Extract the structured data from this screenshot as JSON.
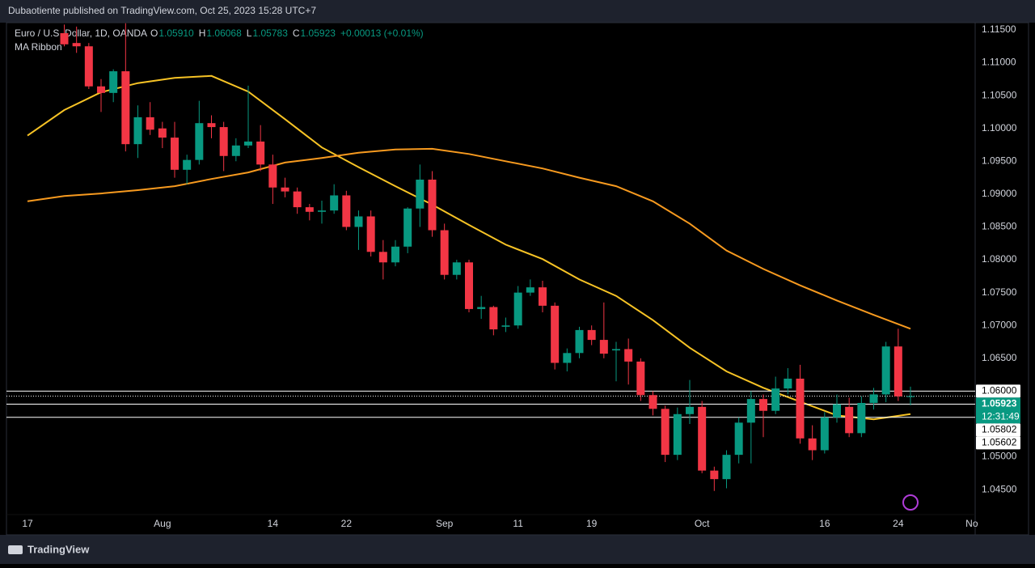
{
  "header": {
    "publisher": "Dubaotiente published on TradingView.com, Oct 25, 2023 15:28 UTC+7"
  },
  "footer": {
    "brand": "TradingView"
  },
  "chart_data": {
    "type": "candlestick",
    "title": "Euro / U.S. Dollar, 1D, OANDA",
    "legend": {
      "o_label": "O",
      "o": "1.05910",
      "h_label": "H",
      "h": "1.06068",
      "l_label": "L",
      "l": "1.05783",
      "c_label": "C",
      "c": "1.05923",
      "change": "+0.00013 (+0.01%)"
    },
    "indicator": "MA Ribbon",
    "up_color": "#089981",
    "down_color": "#f23645",
    "ylim": [
      1.0412,
      1.1161
    ],
    "yticks": [
      {
        "value": 1.115,
        "label": "1.11500"
      },
      {
        "value": 1.11,
        "label": "1.11000"
      },
      {
        "value": 1.105,
        "label": "1.10500"
      },
      {
        "value": 1.1,
        "label": "1.10000"
      },
      {
        "value": 1.095,
        "label": "1.09500"
      },
      {
        "value": 1.09,
        "label": "1.09000"
      },
      {
        "value": 1.085,
        "label": "1.08500"
      },
      {
        "value": 1.08,
        "label": "1.08000"
      },
      {
        "value": 1.075,
        "label": "1.07500"
      },
      {
        "value": 1.07,
        "label": "1.07000"
      },
      {
        "value": 1.065,
        "label": "1.06500"
      },
      {
        "value": 1.06,
        "label": "1.06000"
      },
      {
        "value": 1.055,
        "label": "1.05500"
      },
      {
        "value": 1.05,
        "label": "1.05000"
      },
      {
        "value": 1.045,
        "label": "1.04500"
      }
    ],
    "grid": false,
    "categories": [
      "17",
      null,
      null,
      null,
      null,
      null,
      null,
      null,
      null,
      null,
      null,
      "Aug",
      null,
      null,
      null,
      null,
      null,
      null,
      null,
      null,
      "14",
      null,
      null,
      null,
      null,
      null,
      "22",
      null,
      null,
      null,
      null,
      null,
      null,
      null,
      "Sep",
      null,
      null,
      null,
      null,
      null,
      "11",
      null,
      null,
      null,
      null,
      null,
      "19",
      null,
      null,
      null,
      null,
      null,
      null,
      null,
      null,
      "Oct",
      null,
      null,
      null,
      null,
      null,
      null,
      null,
      null,
      null,
      "16",
      null,
      null,
      null,
      null,
      null,
      "24",
      null,
      null,
      null,
      null,
      null,
      "No"
    ],
    "open": [
      null,
      null,
      null,
      1.1145,
      1.113,
      1.1125,
      1.1064,
      1.1054,
      1.1087,
      1.0976,
      1.1017,
      1.1,
      1.0986,
      1.0937,
      1.0952,
      1.1008,
      1.1002,
      1.0958,
      1.0974,
      1.098,
      1.0945,
      1.091,
      1.0904,
      1.088,
      1.0873,
      1.0875,
      1.0898,
      1.085,
      1.0866,
      1.0812,
      1.0796,
      1.082,
      1.0878,
      1.0922,
      1.0845,
      1.0777,
      1.0796,
      1.0725,
      1.0728,
      1.0698,
      1.07,
      1.075,
      1.0758,
      1.073,
      1.0643,
      1.0658,
      1.0693,
      1.0678,
      1.0662,
      1.0664,
      1.0645,
      1.0594,
      1.0573,
      1.0503,
      1.0565,
      1.0576,
      1.0479,
      1.0466,
      1.0503,
      1.0552,
      1.0588,
      1.057,
      1.0604,
      1.0619,
      1.0528,
      1.051,
      1.056,
      1.0576,
      1.0536,
      1.0582,
      1.0595,
      1.0668,
      1.0591,
      null,
      null,
      null,
      null,
      null
    ],
    "high": [
      null,
      null,
      null,
      1.1158,
      1.1155,
      1.113,
      1.1075,
      1.109,
      1.116,
      1.1035,
      1.104,
      1.101,
      1.101,
      1.096,
      1.1042,
      1.102,
      1.101,
      1.0985,
      1.1065,
      1.1005,
      1.096,
      1.0925,
      1.091,
      1.0885,
      1.089,
      1.0915,
      1.0905,
      1.0875,
      1.0875,
      1.083,
      1.083,
      1.088,
      1.0945,
      1.0935,
      1.0855,
      1.08,
      1.08,
      1.0745,
      1.073,
      1.0712,
      1.076,
      1.077,
      1.0768,
      1.0735,
      1.0665,
      1.0698,
      1.07,
      1.0735,
      1.0675,
      1.068,
      1.065,
      1.06,
      1.0578,
      1.0575,
      1.0617,
      1.0585,
      1.0485,
      1.051,
      1.056,
      1.06,
      1.0595,
      1.0622,
      1.0635,
      1.064,
      1.0548,
      1.0568,
      1.0595,
      1.059,
      1.0592,
      1.0605,
      1.0675,
      1.0695,
      1.06068,
      null,
      null,
      null,
      null,
      null
    ],
    "low": [
      null,
      null,
      null,
      1.1125,
      1.1115,
      1.106,
      1.1025,
      1.104,
      1.0965,
      1.0955,
      1.099,
      1.097,
      1.0925,
      1.0915,
      1.0945,
      1.0985,
      1.0935,
      1.095,
      1.097,
      1.0935,
      1.0885,
      1.0895,
      1.087,
      1.086,
      1.0855,
      1.087,
      1.0845,
      1.0815,
      1.0805,
      1.077,
      1.079,
      1.081,
      1.085,
      1.0835,
      1.077,
      1.077,
      1.072,
      1.071,
      1.0685,
      1.069,
      1.0695,
      1.0745,
      1.072,
      1.0633,
      1.063,
      1.065,
      1.067,
      1.065,
      1.0615,
      1.061,
      1.0585,
      1.0563,
      1.0492,
      1.0495,
      1.055,
      1.0475,
      1.0448,
      1.0452,
      1.049,
      1.049,
      1.053,
      1.0565,
      1.0595,
      1.052,
      1.0495,
      1.0505,
      1.0552,
      1.053,
      1.053,
      1.0572,
      1.0583,
      1.0585,
      1.05783,
      null,
      null,
      null,
      null,
      null
    ],
    "close": [
      null,
      null,
      null,
      1.1128,
      1.1125,
      1.1064,
      1.1054,
      1.1087,
      1.0976,
      1.1017,
      1.0998,
      1.0986,
      1.0937,
      1.0952,
      1.1008,
      1.1002,
      1.0958,
      1.0974,
      1.098,
      1.0945,
      1.091,
      1.0904,
      1.088,
      1.0873,
      1.0875,
      1.0898,
      1.085,
      1.0866,
      1.0812,
      1.0796,
      1.082,
      1.0878,
      1.0922,
      1.0845,
      1.0777,
      1.0796,
      1.0725,
      1.0728,
      1.0694,
      1.07,
      1.075,
      1.0758,
      1.073,
      1.0643,
      1.0658,
      1.0693,
      1.0678,
      1.0657,
      1.0664,
      1.0645,
      1.0594,
      1.0573,
      1.0503,
      1.0565,
      1.0576,
      1.0479,
      1.0466,
      1.0503,
      1.0552,
      1.0588,
      1.057,
      1.0604,
      1.0619,
      1.0528,
      1.051,
      1.056,
      1.058,
      1.0536,
      1.0582,
      1.0595,
      1.0668,
      1.0592,
      1.05923,
      null,
      null,
      null,
      null,
      null
    ],
    "series": [
      {
        "color": "#f7c325",
        "x": [
          0,
          3,
          6,
          9,
          12,
          15,
          18,
          21,
          24,
          27,
          30,
          33,
          36,
          39,
          42,
          45,
          48,
          51,
          54,
          57,
          60,
          63,
          66,
          69,
          72
        ],
        "values": [
          1.0989,
          1.1028,
          1.1055,
          1.1069,
          1.1077,
          1.108,
          1.1056,
          1.1014,
          1.0971,
          1.0941,
          1.0912,
          1.0884,
          1.0853,
          1.0823,
          1.0801,
          1.077,
          1.0745,
          1.0708,
          1.0666,
          1.063,
          1.0605,
          1.0584,
          1.0563,
          1.0557,
          1.0565
        ]
      },
      {
        "color": "#f79a1f",
        "x": [
          0,
          3,
          6,
          9,
          12,
          15,
          18,
          21,
          24,
          27,
          30,
          33,
          36,
          39,
          42,
          45,
          48,
          51,
          54,
          57,
          60,
          63,
          66,
          69,
          72
        ],
        "values": [
          1.0889,
          1.0897,
          1.0901,
          1.0906,
          1.0912,
          1.0923,
          1.0933,
          1.0948,
          1.0955,
          1.0963,
          1.0968,
          1.0969,
          1.0961,
          1.095,
          1.0939,
          1.0925,
          1.0912,
          1.0889,
          1.0855,
          1.0814,
          1.0786,
          1.0761,
          1.0738,
          1.0716,
          1.0695
        ]
      }
    ],
    "price_lines": [
      {
        "value": 1.06,
        "label": "1.06000",
        "style": "solid",
        "color": "#ffffff"
      },
      {
        "value": 1.05923,
        "label": "1.05923",
        "style": "dotted",
        "color": "#089981",
        "countdown": "12:31:49"
      },
      {
        "value": 1.05802,
        "label": "1.05802",
        "style": "solid",
        "color": "#ffffff"
      },
      {
        "value": 1.05602,
        "label": "1.05602",
        "style": "solid",
        "color": "#ffffff"
      }
    ]
  }
}
